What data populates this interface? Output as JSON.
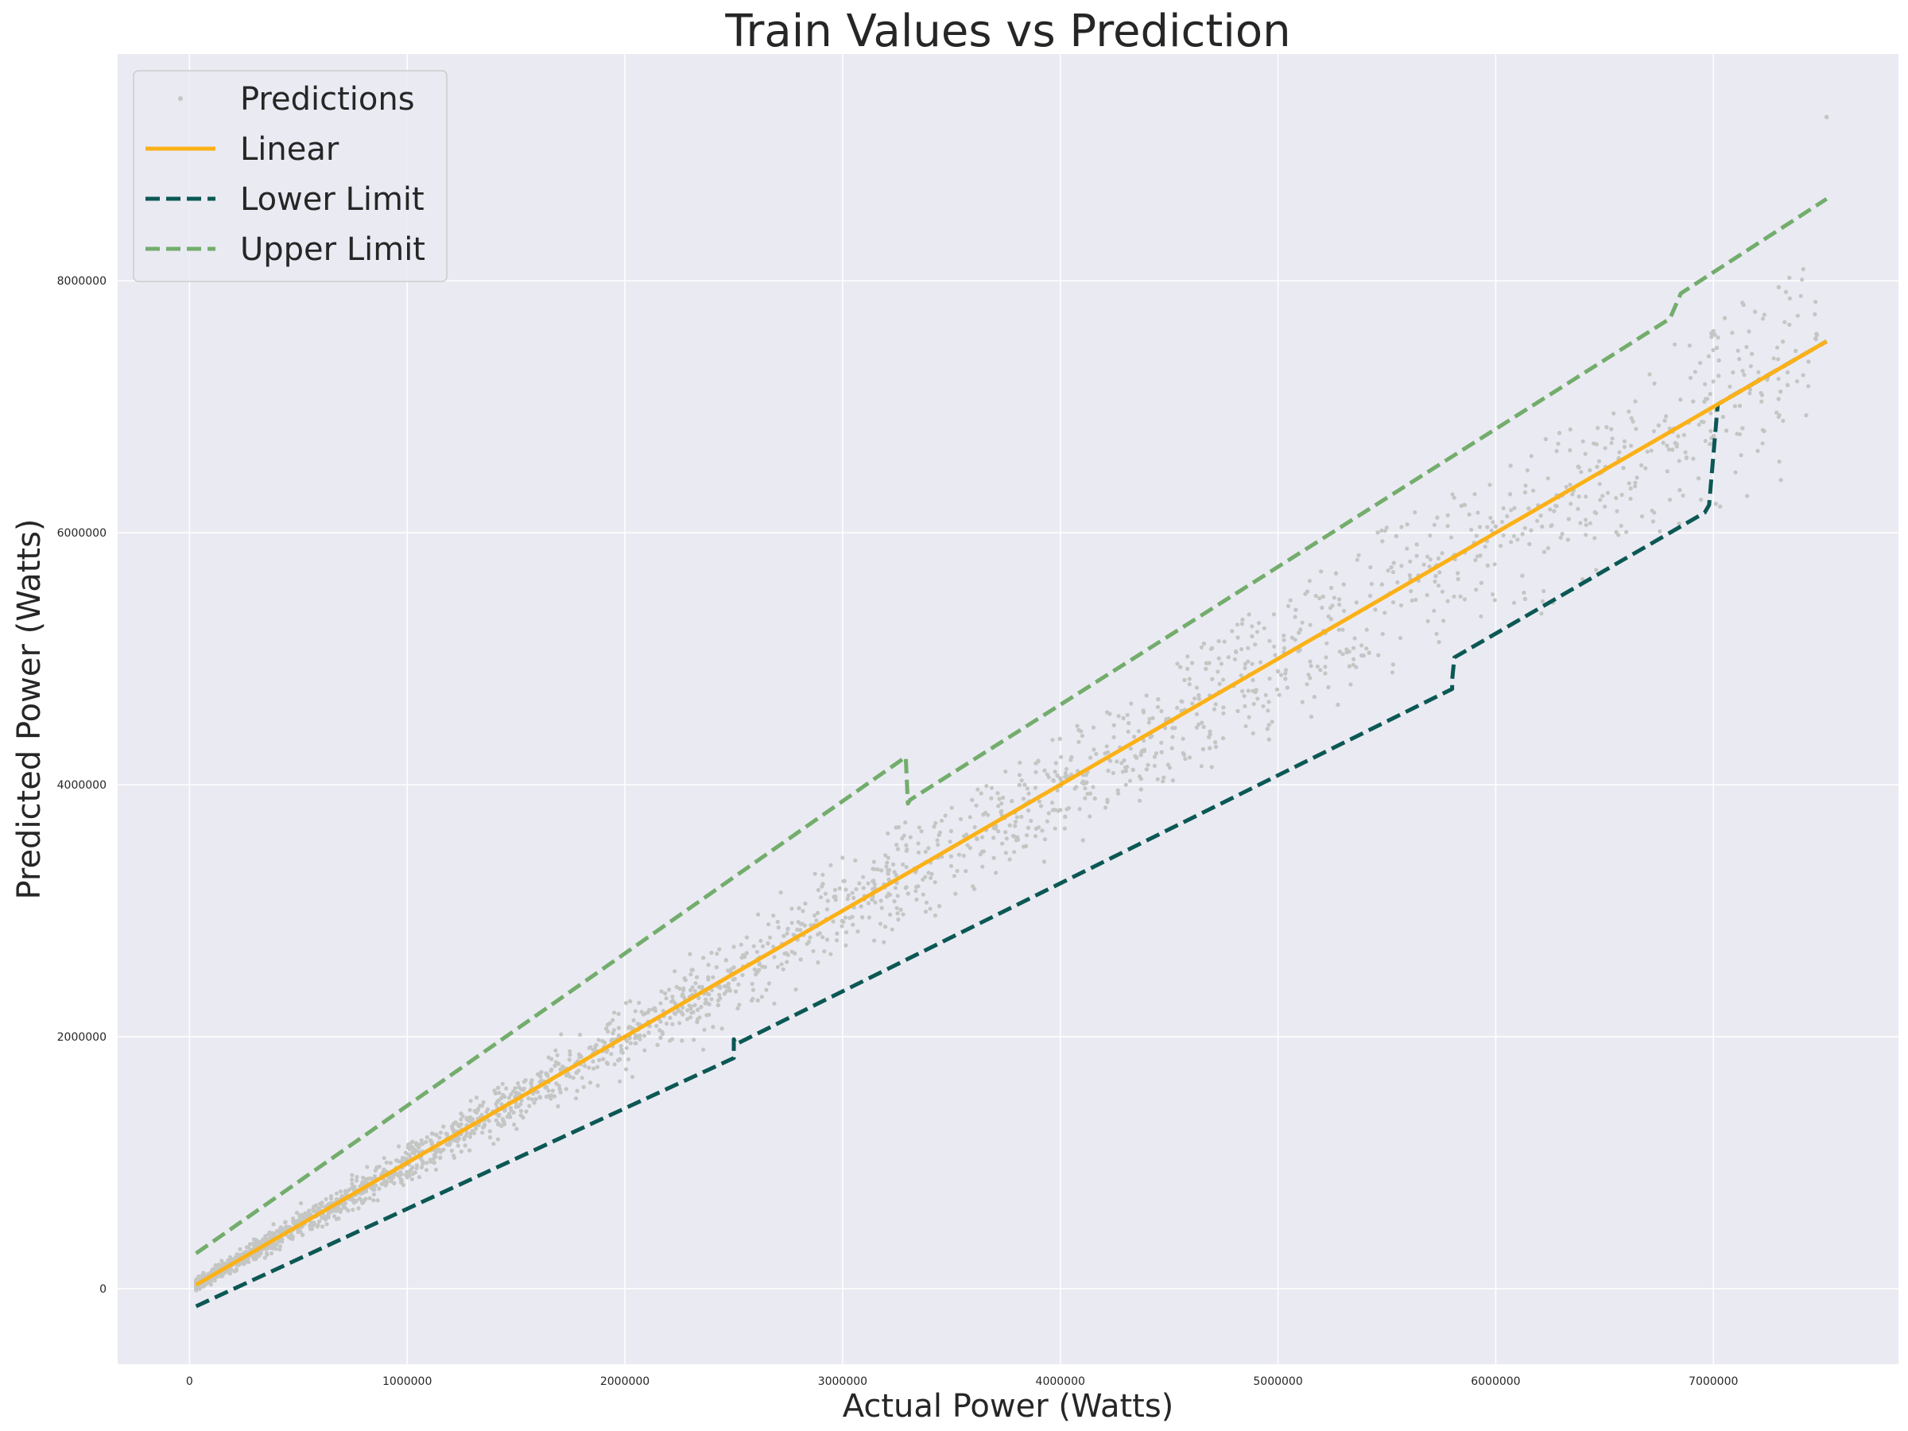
{
  "chart_data": {
    "type": "scatter",
    "title": "Train Values vs Prediction",
    "xlabel": "Actual Power (Watts)",
    "ylabel": "Predicted Power (Watts)",
    "xlim": [
      -330000,
      7850000
    ],
    "ylim": [
      -600000,
      9800000
    ],
    "x_ticks": [
      0,
      1000000,
      2000000,
      3000000,
      4000000,
      5000000,
      6000000,
      7000000
    ],
    "x_tick_labels": [
      "0",
      "1000000",
      "2000000",
      "3000000",
      "4000000",
      "5000000",
      "6000000",
      "7000000"
    ],
    "y_ticks": [
      0,
      2000000,
      4000000,
      6000000,
      8000000
    ],
    "y_tick_labels": [
      "0",
      "2000000",
      "4000000",
      "6000000",
      "8000000"
    ],
    "grid": true,
    "legend_position": "top-left",
    "background_color": "#eaeaf2",
    "series": [
      {
        "name": "Predictions",
        "kind": "scatter",
        "color": "#c4c6c4",
        "points_sample": [
          [
            50000,
            60000
          ],
          [
            300000,
            300000
          ],
          [
            600000,
            620000
          ],
          [
            1000000,
            1000000
          ],
          [
            1500000,
            1500000
          ],
          [
            2000000,
            2000000
          ],
          [
            2500000,
            2550000
          ],
          [
            3000000,
            3000000
          ],
          [
            3500000,
            3500000
          ],
          [
            4000000,
            4050000
          ],
          [
            4500000,
            4500000
          ],
          [
            5000000,
            4900000
          ],
          [
            5500000,
            5500000
          ],
          [
            6000000,
            6050000
          ],
          [
            6500000,
            6500000
          ],
          [
            7000000,
            7600000
          ],
          [
            7300000,
            7950000
          ],
          [
            7520000,
            9300000
          ]
        ]
      },
      {
        "name": "Linear",
        "kind": "line",
        "color": "#fbb117",
        "x": [
          30000,
          7520000
        ],
        "y": [
          30000,
          7520000
        ]
      },
      {
        "name": "Lower Limit",
        "kind": "line",
        "color": "#0b5854",
        "dash": "dashed",
        "x": [
          30000,
          2500000,
          2500000,
          2510000,
          5800000,
          5800000,
          5810000,
          6960000,
          6980000,
          7020000,
          7520000
        ],
        "y": [
          -140000,
          1830000,
          1980000,
          1940000,
          4760000,
          4830000,
          5010000,
          6160000,
          6220000,
          7020000,
          7520000
        ]
      },
      {
        "name": "Upper Limit",
        "kind": "line",
        "color": "#73ad6c",
        "dash": "dashed",
        "x": [
          30000,
          3290000,
          3300000,
          3310000,
          6800000,
          6850000,
          7520000
        ],
        "y": [
          280000,
          4220000,
          3850000,
          3880000,
          7700000,
          7900000,
          8650000
        ]
      }
    ]
  }
}
